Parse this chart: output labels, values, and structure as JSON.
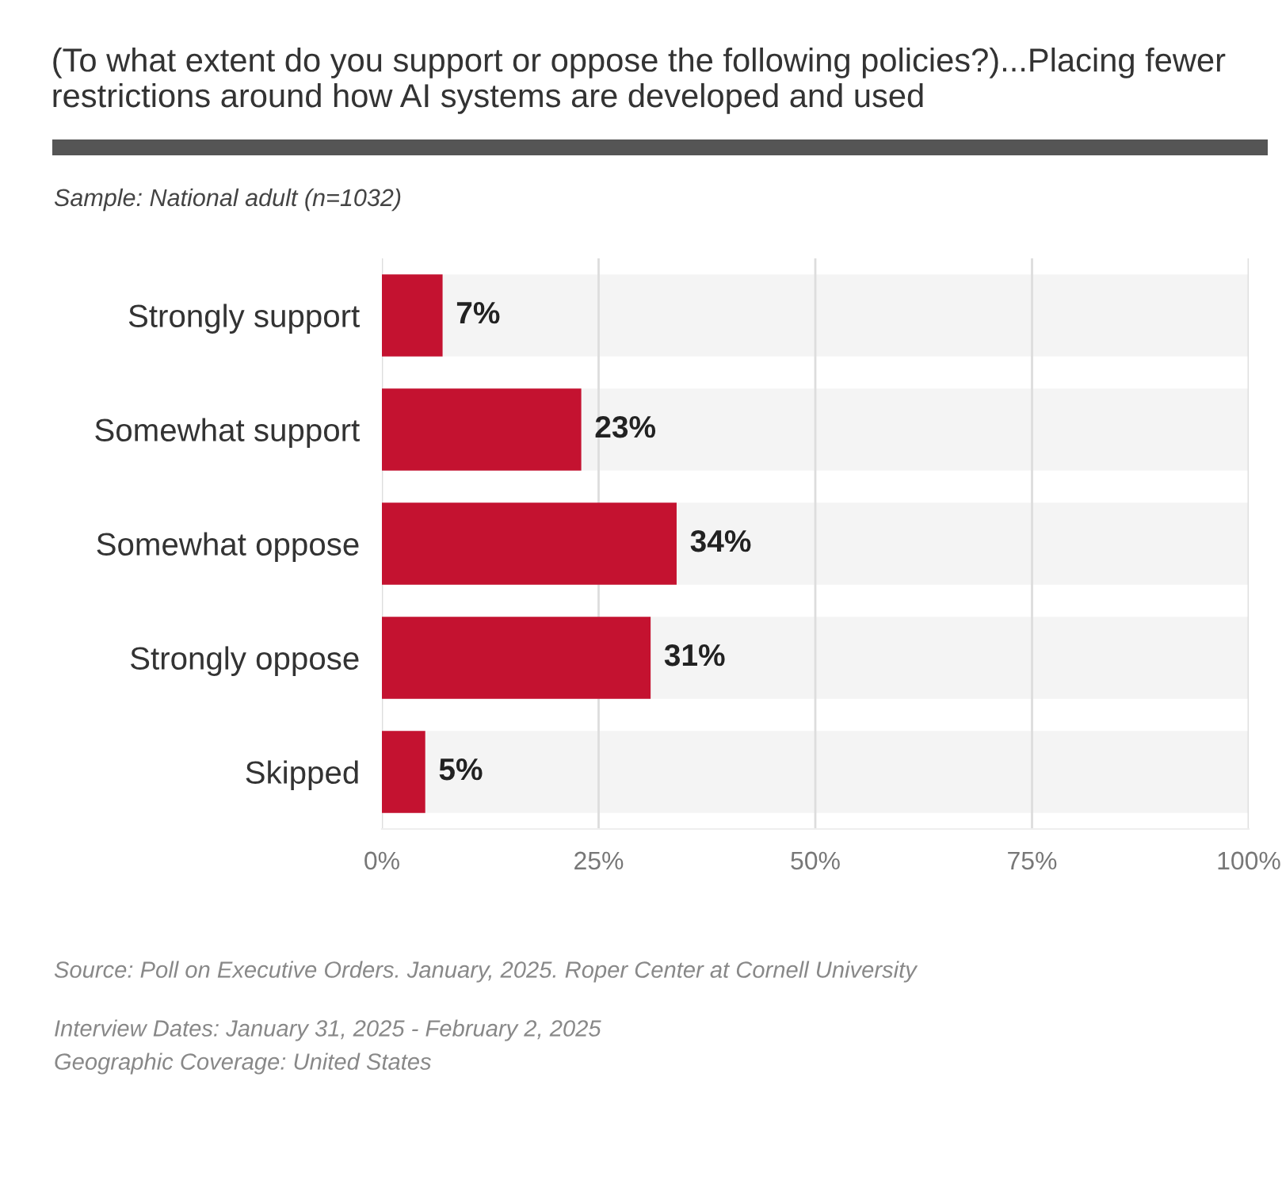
{
  "chart_data": {
    "type": "bar",
    "orientation": "horizontal",
    "title": "(To what extent do you support or oppose the following policies?)...Placing fewer restrictions around how AI systems are developed and used",
    "subtitle": "Sample: National adult (n=1032)",
    "categories": [
      "Strongly support",
      "Somewhat support",
      "Somewhat oppose",
      "Strongly oppose",
      "Skipped"
    ],
    "values": [
      7,
      23,
      34,
      31,
      5
    ],
    "value_labels": [
      "7%",
      "23%",
      "34%",
      "31%",
      "5%"
    ],
    "color": "#c41230",
    "xlim": [
      0,
      100
    ],
    "xticks": [
      {
        "value": 0,
        "label": "0%"
      },
      {
        "value": 25,
        "label": "25%"
      },
      {
        "value": 50,
        "label": "50%"
      },
      {
        "value": 75,
        "label": "75%"
      },
      {
        "value": 100,
        "label": "100%"
      }
    ],
    "grid": "x",
    "legend": false,
    "annotations": [
      "Source: Poll on Executive Orders. January, 2025. Roper Center at Cornell University",
      "Interview Dates: January 31, 2025 - February 2, 2025",
      "Geographic Coverage: United States"
    ]
  }
}
